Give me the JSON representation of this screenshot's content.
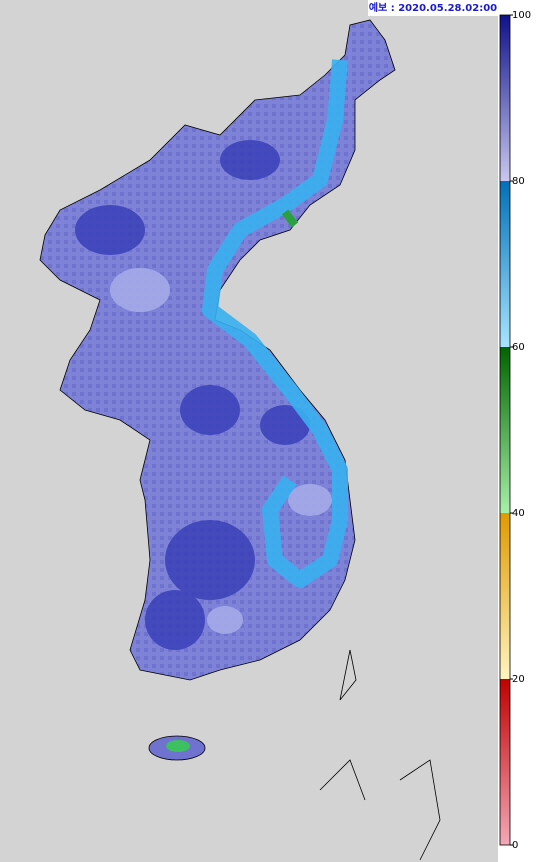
{
  "header": {
    "forecast": "예보 : 2020.05.28.02:00"
  },
  "colorbar": {
    "ticks": [
      0,
      20,
      40,
      60,
      80,
      100
    ],
    "band_colors": [
      [
        "#f4a8b8",
        "#c00000"
      ],
      [
        "#fff4c0",
        "#e09a00"
      ],
      [
        "#a8f0a8",
        "#006400"
      ],
      [
        "#a8e4ff",
        "#0070b8"
      ],
      [
        "#c8c8f0",
        "#10108a"
      ]
    ]
  }
}
